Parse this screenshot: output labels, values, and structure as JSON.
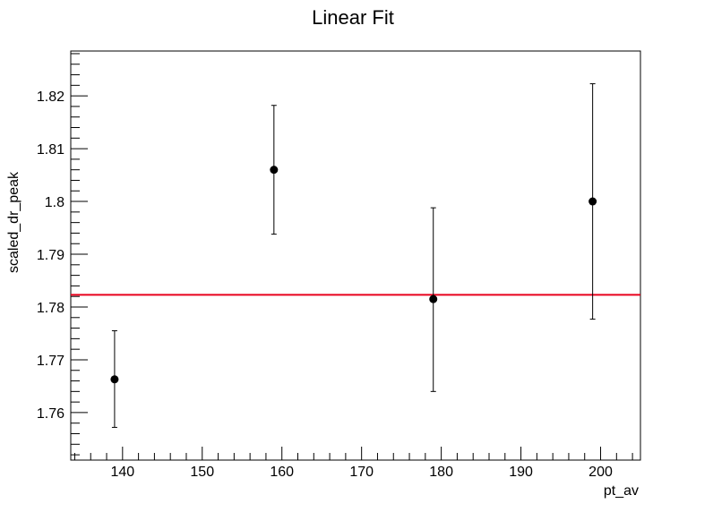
{
  "chart_data": {
    "type": "scatter",
    "title": "Linear Fit",
    "xlabel": "pt_av",
    "ylabel": "scaled_dr_peak",
    "xlim": [
      133.5,
      205
    ],
    "ylim": [
      1.751,
      1.8285
    ],
    "xticks": [
      140,
      150,
      160,
      170,
      180,
      190,
      200
    ],
    "yticks": [
      1.76,
      1.77,
      1.78,
      1.79,
      1.8,
      1.81,
      1.82
    ],
    "xtick_labels": [
      "140",
      "150",
      "160",
      "170",
      "180",
      "190",
      "200"
    ],
    "ytick_labels": [
      "1.76",
      "1.77",
      "1.78",
      "1.79",
      "1.8",
      "1.81",
      "1.82"
    ],
    "x_minor_step": 2,
    "y_minor_step": 0.002,
    "points": [
      {
        "x": 139,
        "y": 1.7663,
        "yerr_low": 1.7572,
        "yerr_high": 1.7755
      },
      {
        "x": 159,
        "y": 1.806,
        "yerr_low": 1.7938,
        "yerr_high": 1.8182
      },
      {
        "x": 179,
        "y": 1.7815,
        "yerr_low": 1.764,
        "yerr_high": 1.7988
      },
      {
        "x": 199,
        "y": 1.8,
        "yerr_low": 1.7777,
        "yerr_high": 1.8223
      }
    ],
    "fit": {
      "type": "linear",
      "slope": 0,
      "intercept": 1.7823
    },
    "colors": {
      "points": "#000000",
      "fit": "#e8001c"
    },
    "grid": false,
    "legend": "none"
  }
}
